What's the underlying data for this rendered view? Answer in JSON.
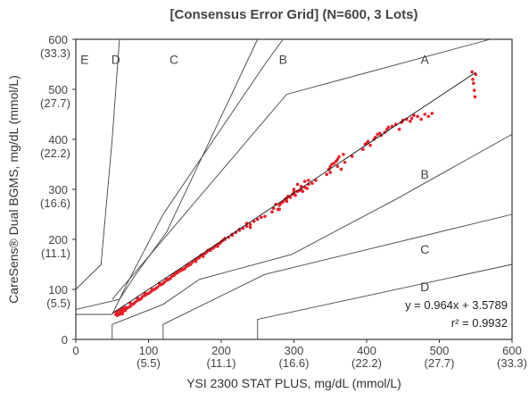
{
  "chart_data": {
    "type": "scatter",
    "title": "[Consensus Error Grid] (N=600, 3 Lots)",
    "xlabel": "YSI 2300 STAT PLUS, mg/dL (mmol/L)",
    "ylabel": "CareSens® Dual BGMS, mg/dL (mmol/L)",
    "xlim": [
      0,
      600
    ],
    "ylim": [
      0,
      600
    ],
    "x_ticks": [
      {
        "value": 0,
        "label": "0",
        "sub": ""
      },
      {
        "value": 100,
        "label": "100",
        "sub": "(5.5)"
      },
      {
        "value": 200,
        "label": "200",
        "sub": "(11.1)"
      },
      {
        "value": 300,
        "label": "300",
        "sub": "(16.6)"
      },
      {
        "value": 400,
        "label": "400",
        "sub": "(22.2)"
      },
      {
        "value": 500,
        "label": "500",
        "sub": "(27.7)"
      },
      {
        "value": 600,
        "label": "600",
        "sub": "(33.3)"
      }
    ],
    "y_ticks": [
      {
        "value": 0,
        "label": "0",
        "sub": ""
      },
      {
        "value": 100,
        "label": "100",
        "sub": "(5.5)"
      },
      {
        "value": 200,
        "label": "200",
        "sub": "(11.1)"
      },
      {
        "value": 300,
        "label": "300",
        "sub": "(16.6)"
      },
      {
        "value": 400,
        "label": "400",
        "sub": "(22.2)"
      },
      {
        "value": 500,
        "label": "500",
        "sub": "(27.7)"
      },
      {
        "value": 600,
        "label": "600",
        "sub": "(33.3)"
      }
    ],
    "grid": false,
    "point_color": "#e8202a",
    "regression": {
      "slope": 0.964,
      "intercept": 3.5789,
      "x_range": [
        50,
        550
      ],
      "equation_label": "y = 0.964x + 3.5789",
      "r2_label": "r² = 0.9932"
    },
    "zone_boundaries": [
      {
        "name": "A/B upper",
        "points": [
          [
            50,
            80
          ],
          [
            290,
            490
          ],
          [
            570,
            600
          ]
        ]
      },
      {
        "name": "A/B lower",
        "points": [
          [
            50,
            0
          ],
          [
            50,
            30
          ],
          [
            120,
            70
          ],
          [
            170,
            120
          ],
          [
            297,
            170
          ],
          [
            440,
            280
          ],
          [
            600,
            410
          ]
        ]
      },
      {
        "name": "B/C upper",
        "points": [
          [
            0,
            50
          ],
          [
            50,
            50
          ],
          [
            70,
            110
          ],
          [
            120,
            250
          ],
          [
            260,
            550
          ],
          [
            285,
            600
          ]
        ]
      },
      {
        "name": "B/C lower",
        "points": [
          [
            120,
            0
          ],
          [
            120,
            30
          ],
          [
            260,
            130
          ],
          [
            600,
            250
          ]
        ]
      },
      {
        "name": "C/D upper",
        "points": [
          [
            0,
            60
          ],
          [
            60,
            80
          ],
          [
            80,
            125
          ],
          [
            125,
            215
          ],
          [
            250,
            600
          ]
        ]
      },
      {
        "name": "C/D lower",
        "points": [
          [
            250,
            0
          ],
          [
            250,
            40
          ],
          [
            600,
            150
          ]
        ]
      },
      {
        "name": "D/E upper",
        "points": [
          [
            0,
            100
          ],
          [
            35,
            150
          ],
          [
            35,
            155
          ],
          [
            50,
            400
          ],
          [
            60,
            600
          ]
        ]
      }
    ],
    "zone_labels": [
      {
        "text": "E",
        "x": 12,
        "y": 560
      },
      {
        "text": "D",
        "x": 55,
        "y": 560
      },
      {
        "text": "C",
        "x": 135,
        "y": 560
      },
      {
        "text": "B",
        "x": 285,
        "y": 560
      },
      {
        "text": "A",
        "x": 480,
        "y": 560
      },
      {
        "text": "B",
        "x": 480,
        "y": 330
      },
      {
        "text": "C",
        "x": 480,
        "y": 180
      },
      {
        "text": "D",
        "x": 480,
        "y": 105
      }
    ],
    "series": [
      {
        "values": [
          [
            55,
            50
          ],
          [
            56,
            55
          ],
          [
            57,
            48
          ],
          [
            58,
            52
          ],
          [
            59,
            54
          ],
          [
            60,
            50
          ],
          [
            62,
            53
          ],
          [
            63,
            57
          ],
          [
            64,
            51
          ],
          [
            65,
            56
          ],
          [
            66,
            60
          ],
          [
            68,
            58
          ],
          [
            70,
            62
          ],
          [
            72,
            64
          ],
          [
            75,
            66
          ],
          [
            78,
            70
          ],
          [
            80,
            72
          ],
          [
            82,
            75
          ],
          [
            85,
            78
          ],
          [
            88,
            80
          ],
          [
            90,
            82
          ],
          [
            92,
            86
          ],
          [
            95,
            88
          ],
          [
            97,
            90
          ],
          [
            100,
            92
          ],
          [
            103,
            95
          ],
          [
            105,
            98
          ],
          [
            108,
            100
          ],
          [
            110,
            102
          ],
          [
            112,
            104
          ],
          [
            115,
            108
          ],
          [
            118,
            110
          ],
          [
            120,
            112
          ],
          [
            122,
            115
          ],
          [
            125,
            118
          ],
          [
            128,
            120
          ],
          [
            130,
            122
          ],
          [
            132,
            126
          ],
          [
            135,
            128
          ],
          [
            138,
            132
          ],
          [
            140,
            134
          ],
          [
            142,
            136
          ],
          [
            145,
            138
          ],
          [
            148,
            140
          ],
          [
            150,
            142
          ],
          [
            152,
            146
          ],
          [
            155,
            150
          ],
          [
            158,
            150
          ],
          [
            160,
            154
          ],
          [
            163,
            158
          ],
          [
            165,
            160
          ],
          [
            168,
            162
          ],
          [
            170,
            164
          ],
          [
            172,
            168
          ],
          [
            175,
            170
          ],
          [
            178,
            172
          ],
          [
            180,
            175
          ],
          [
            182,
            178
          ],
          [
            185,
            180
          ],
          [
            188,
            182
          ],
          [
            190,
            184
          ],
          [
            192,
            187
          ],
          [
            195,
            190
          ],
          [
            198,
            192
          ],
          [
            200,
            195
          ],
          [
            202,
            198
          ],
          [
            205,
            200
          ],
          [
            210,
            204
          ],
          [
            215,
            208
          ],
          [
            220,
            214
          ],
          [
            225,
            218
          ],
          [
            230,
            222
          ],
          [
            235,
            226
          ],
          [
            240,
            230
          ],
          [
            245,
            236
          ],
          [
            250,
            240
          ],
          [
            255,
            244
          ],
          [
            270,
            255
          ],
          [
            272,
            262
          ],
          [
            275,
            270
          ],
          [
            278,
            260
          ],
          [
            280,
            268
          ],
          [
            282,
            272
          ],
          [
            285,
            275
          ],
          [
            288,
            280
          ],
          [
            290,
            282
          ],
          [
            292,
            286
          ],
          [
            295,
            284
          ],
          [
            298,
            290
          ],
          [
            300,
            292
          ],
          [
            302,
            288
          ],
          [
            305,
            296
          ],
          [
            308,
            298
          ],
          [
            310,
            300
          ],
          [
            312,
            296
          ],
          [
            315,
            304
          ],
          [
            318,
            302
          ],
          [
            320,
            310
          ],
          [
            325,
            312
          ],
          [
            330,
            318
          ],
          [
            345,
            330
          ],
          [
            348,
            340
          ],
          [
            350,
            345
          ],
          [
            352,
            350
          ],
          [
            355,
            352
          ],
          [
            358,
            356
          ],
          [
            360,
            360
          ],
          [
            362,
            365
          ],
          [
            365,
            340
          ],
          [
            368,
            370
          ],
          [
            380,
            366
          ],
          [
            395,
            380
          ],
          [
            398,
            390
          ],
          [
            400,
            392
          ],
          [
            402,
            396
          ],
          [
            405,
            388
          ],
          [
            410,
            400
          ],
          [
            412,
            404
          ],
          [
            415,
            410
          ],
          [
            418,
            412
          ],
          [
            420,
            408
          ],
          [
            425,
            414
          ],
          [
            428,
            420
          ],
          [
            430,
            424
          ],
          [
            435,
            426
          ],
          [
            440,
            430
          ],
          [
            445,
            420
          ],
          [
            448,
            434
          ],
          [
            450,
            438
          ],
          [
            455,
            440
          ],
          [
            460,
            436
          ],
          [
            462,
            442
          ],
          [
            465,
            448
          ],
          [
            470,
            446
          ],
          [
            475,
            440
          ],
          [
            480,
            450
          ],
          [
            485,
            446
          ],
          [
            490,
            452
          ],
          [
            545,
            535
          ],
          [
            546,
            520
          ],
          [
            547,
            512
          ],
          [
            548,
            498
          ],
          [
            549,
            485
          ],
          [
            550,
            530
          ],
          [
            350,
            334
          ],
          [
            360,
            346
          ],
          [
            370,
            354
          ],
          [
            300,
            296
          ],
          [
            310,
            306
          ],
          [
            320,
            318
          ],
          [
            280,
            260
          ],
          [
            290,
            276
          ],
          [
            300,
            300
          ],
          [
            305,
            310
          ],
          [
            315,
            316
          ],
          [
            260,
            246
          ],
          [
            240,
            224
          ],
          [
            235,
            232
          ],
          [
            225,
            220
          ],
          [
            215,
            210
          ],
          [
            205,
            202
          ],
          [
            195,
            186
          ],
          [
            185,
            178
          ],
          [
            175,
            166
          ],
          [
            165,
            156
          ],
          [
            155,
            148
          ],
          [
            145,
            140
          ],
          [
            135,
            130
          ],
          [
            125,
            120
          ],
          [
            115,
            112
          ],
          [
            105,
            100
          ],
          [
            95,
            92
          ],
          [
            85,
            82
          ],
          [
            75,
            72
          ],
          [
            65,
            62
          ],
          [
            58,
            56
          ],
          [
            56,
            52
          ],
          [
            60,
            58
          ],
          [
            63,
            60
          ],
          [
            68,
            64
          ]
        ]
      }
    ]
  }
}
